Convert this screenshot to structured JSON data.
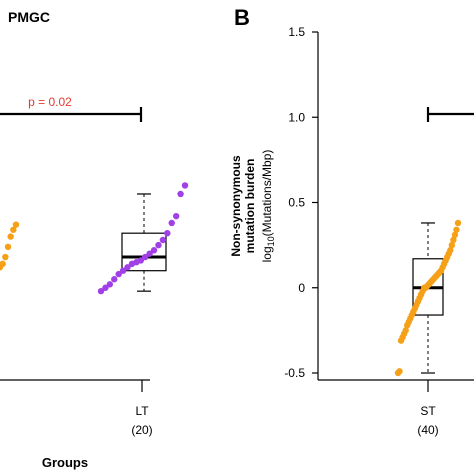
{
  "colors": {
    "orange": "#F5A016",
    "purple": "#A040E6",
    "pvalue": "#E23A2E",
    "axis": "#000000"
  },
  "chart_data": [
    {
      "panel": "",
      "title": "PMGC",
      "type": "box+strip",
      "xlabel": "Groups",
      "groups": [
        {
          "label": "LT",
          "n_label": "(20)",
          "color": "#A040E6",
          "box": {
            "whisker_low": -0.02,
            "q1": 0.1,
            "median": 0.18,
            "q3": 0.32,
            "whisker_high": 0.55
          },
          "points": [
            -0.02,
            0.0,
            0.02,
            0.05,
            0.08,
            0.1,
            0.12,
            0.14,
            0.15,
            0.16,
            0.18,
            0.2,
            0.22,
            0.25,
            0.28,
            0.32,
            0.38,
            0.42,
            0.55,
            0.6
          ]
        },
        {
          "label": "",
          "n_label": "",
          "color": "#F5A016",
          "points": [
            0.12,
            0.14,
            0.18,
            0.24,
            0.3,
            0.34,
            0.37
          ]
        }
      ],
      "annotation": {
        "text": "p = 0.02"
      }
    },
    {
      "panel": "B",
      "type": "box+strip",
      "ylabel_line1": "Non-synonymous",
      "ylabel_line2": "mutation burden",
      "ylabel_line3_prefix": "log",
      "ylabel_line3_sub": "10",
      "ylabel_line3_suffix": "(Mutations/Mbp)",
      "ylim": [
        -0.5,
        1.5
      ],
      "yticks": [
        -0.5,
        0,
        0.5,
        1.0,
        1.5
      ],
      "ytick_labels": [
        "-0.5",
        "0",
        "0.5",
        "1.0",
        "1.5"
      ],
      "groups": [
        {
          "label": "ST",
          "n_label": "(40)",
          "color": "#F5A016",
          "box": {
            "whisker_low": -0.5,
            "q1": -0.16,
            "median": 0.0,
            "q3": 0.17,
            "whisker_high": 0.38
          },
          "points": [
            -0.5,
            -0.49,
            -0.31,
            -0.29,
            -0.27,
            -0.25,
            -0.22,
            -0.2,
            -0.18,
            -0.16,
            -0.14,
            -0.12,
            -0.1,
            -0.08,
            -0.06,
            -0.04,
            -0.02,
            0.0,
            0.0,
            0.01,
            0.02,
            0.03,
            0.04,
            0.05,
            0.06,
            0.07,
            0.08,
            0.09,
            0.1,
            0.12,
            0.14,
            0.16,
            0.18,
            0.2,
            0.22,
            0.25,
            0.28,
            0.31,
            0.34,
            0.38
          ]
        }
      ]
    }
  ]
}
